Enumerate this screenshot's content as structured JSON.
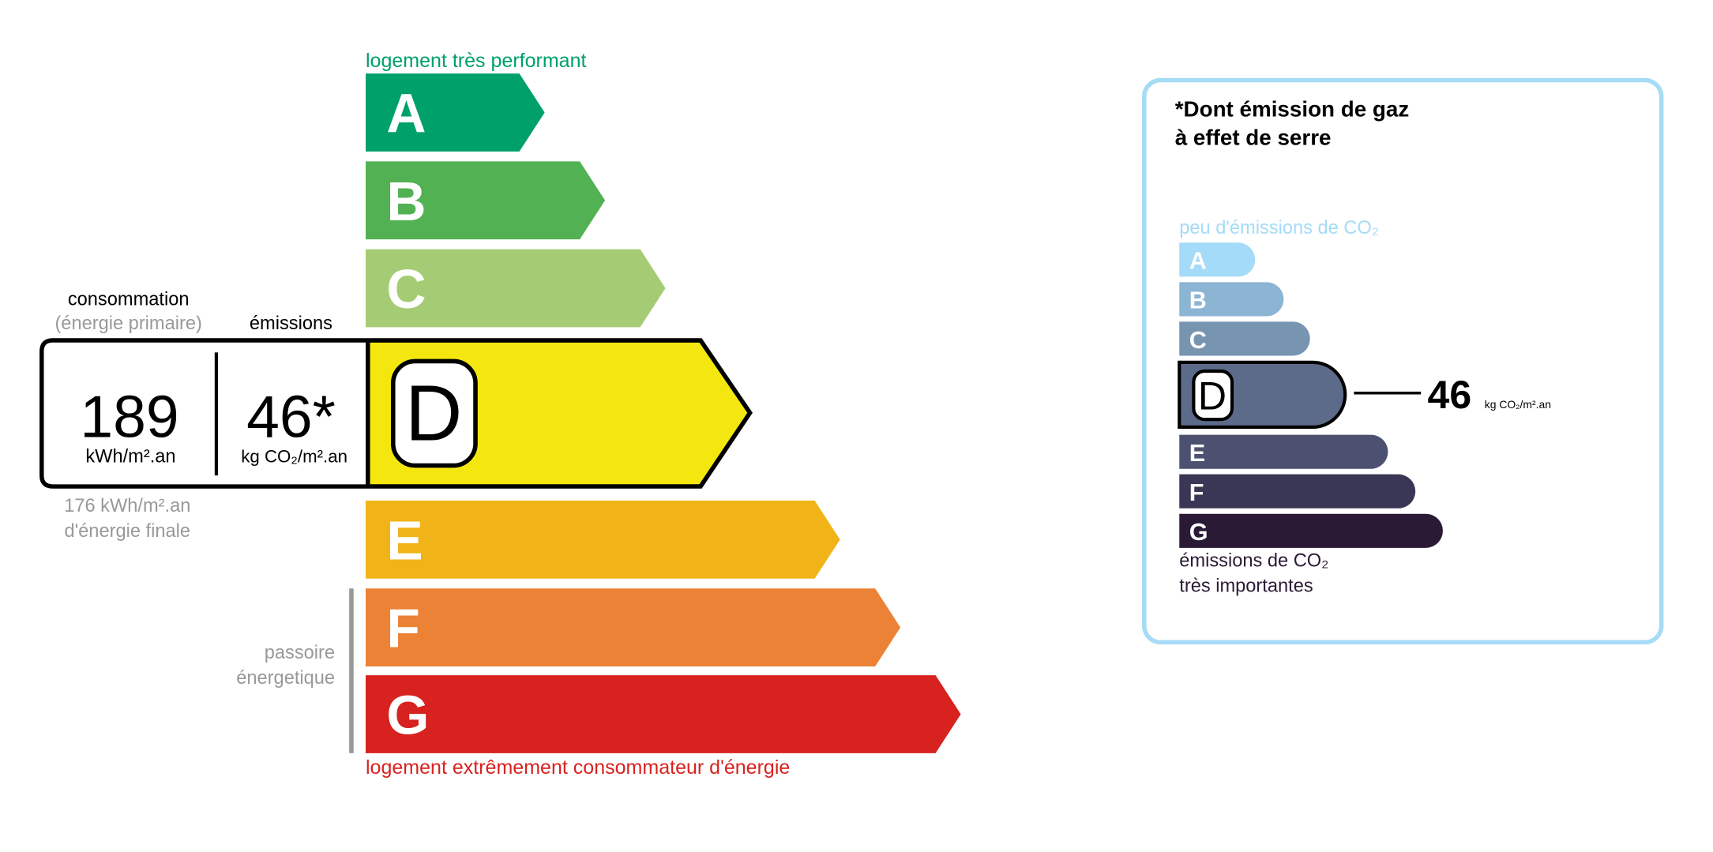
{
  "energy": {
    "top_label": "logement très performant",
    "bottom_label": "logement extrêmement consommateur d'énergie",
    "passoire": [
      "passoire",
      "énergetique"
    ],
    "consumption_label": "consommation",
    "primary_label": "(énergie primaire)",
    "emissions_label": "émissions",
    "consumption_value": "189",
    "consumption_unit": "kWh/m².an",
    "emissions_value": "46*",
    "emissions_unit": "kg CO₂/m².an",
    "final_value": "176 kWh/m².an",
    "final_label": "d'énergie finale",
    "current_class": "D",
    "classes": [
      {
        "letter": "A",
        "color": "#00a06a"
      },
      {
        "letter": "B",
        "color": "#52b153"
      },
      {
        "letter": "C",
        "color": "#a5cc74"
      },
      {
        "letter": "D",
        "color": "#f4e70f"
      },
      {
        "letter": "E",
        "color": "#f0b418"
      },
      {
        "letter": "F",
        "color": "#eb8235"
      },
      {
        "letter": "G",
        "color": "#d7221f"
      }
    ]
  },
  "ghg": {
    "title": [
      "*Dont émission de gaz",
      "à effet de serre"
    ],
    "top_label": "peu d'émissions de CO₂",
    "bottom_label": [
      "émissions de CO₂",
      "très importantes"
    ],
    "value": "46",
    "unit": "kg CO₂/m².an",
    "current_class": "D",
    "border_color": "#a6dcf5",
    "classes": [
      {
        "letter": "A",
        "color": "#a4dbf8"
      },
      {
        "letter": "B",
        "color": "#8cb4d3"
      },
      {
        "letter": "C",
        "color": "#7794b1"
      },
      {
        "letter": "D",
        "color": "#5d6b8a"
      },
      {
        "letter": "E",
        "color": "#4d5171"
      },
      {
        "letter": "F",
        "color": "#3a3655"
      },
      {
        "letter": "G",
        "color": "#2a1a35"
      }
    ]
  }
}
